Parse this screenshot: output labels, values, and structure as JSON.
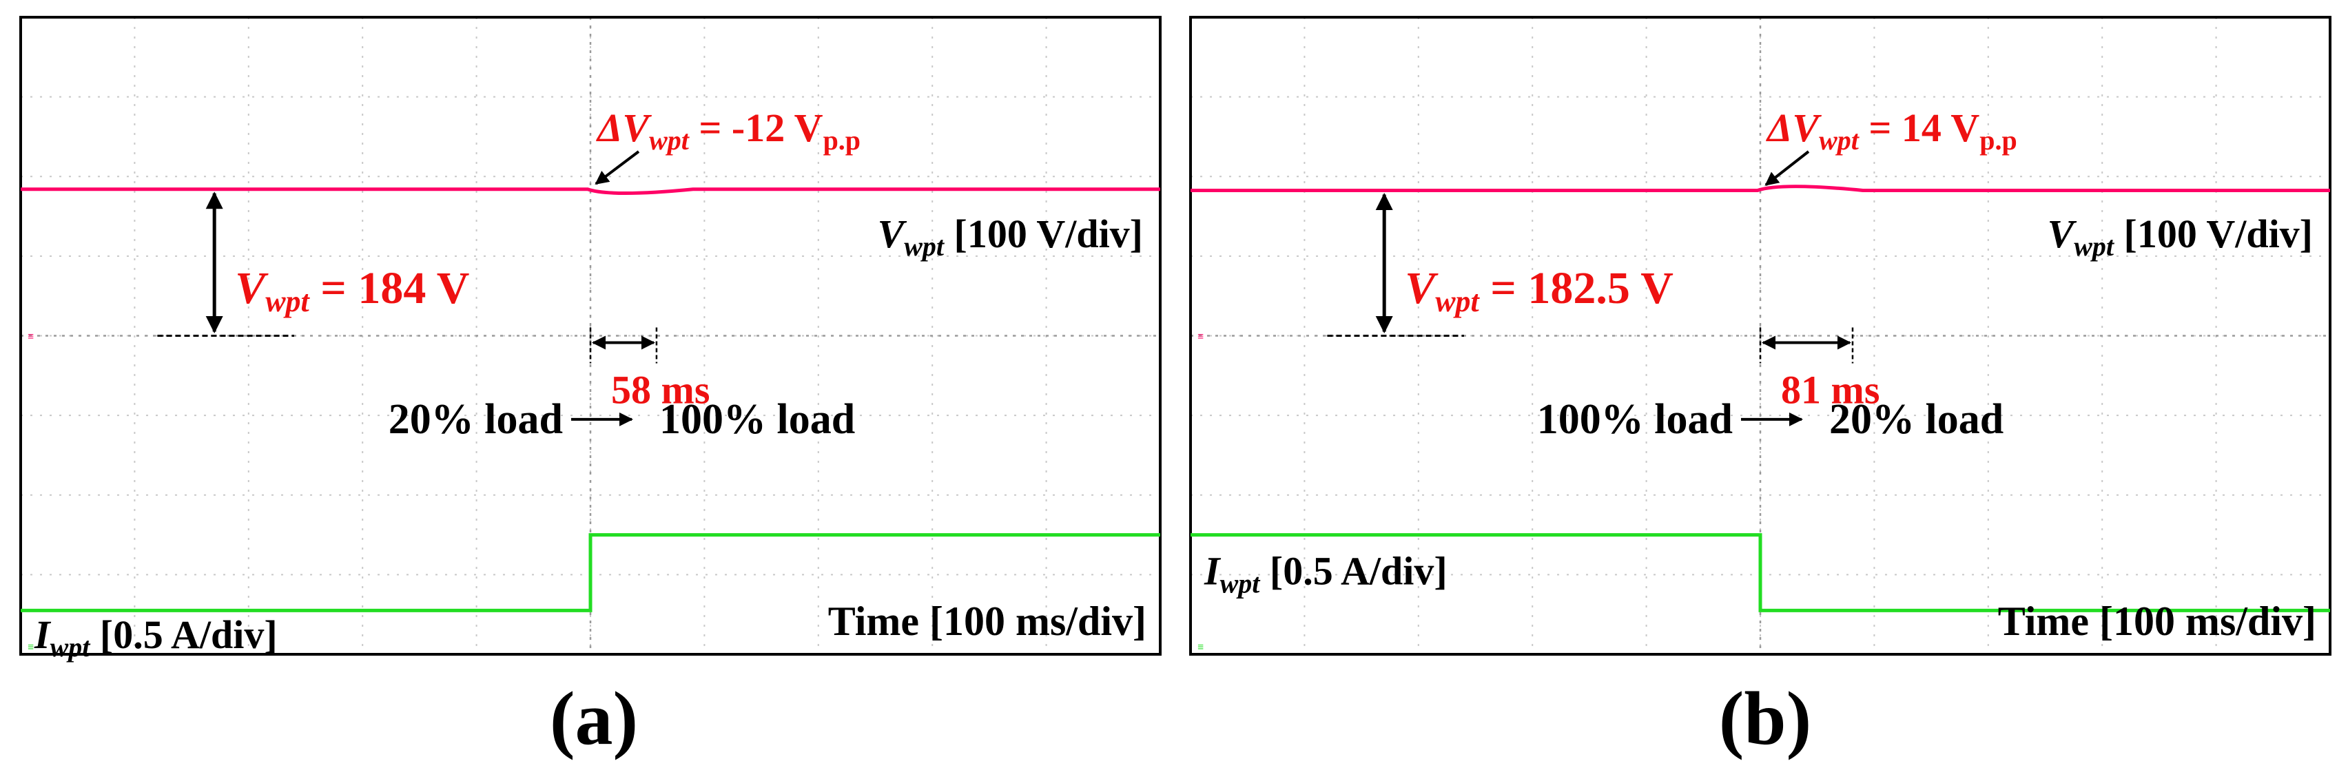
{
  "chart_data": [
    {
      "type": "line",
      "panel_label": "(a)",
      "xlabel": "Time [100 ms/div]",
      "grid": true,
      "step_div": 5,
      "series": [
        {
          "name_main": "V",
          "name_sub": "wpt",
          "name_scale": " [100 V/div]",
          "color": "#ff0066",
          "kind": "voltage",
          "offset_div": 4,
          "before": 184,
          "after": 184,
          "disturbance": "dip",
          "scale_per_div": 100
        },
        {
          "name_main": "I",
          "name_sub": "wpt",
          "name_scale": " [0.5 A/div]",
          "color": "#22dd22",
          "kind": "current",
          "offset_div": 0,
          "before_div": 0.55,
          "after_div": 1.5,
          "scale_per_div": 0.5
        }
      ],
      "annotations": {
        "steady_main": "V",
        "steady_sub": "wpt",
        "steady_text": " = 184 V",
        "delta_prefix": "ΔV",
        "delta_sub": "wpt",
        "delta_text": " = -12 V",
        "delta_unit_sub": "p.p",
        "recovery": "58 ms",
        "recovery_ms": 58,
        "load_from": "20% load",
        "load_to": "100% load"
      }
    },
    {
      "type": "line",
      "panel_label": "(b)",
      "xlabel": "Time [100 ms/div]",
      "grid": true,
      "step_div": 5,
      "series": [
        {
          "name_main": "V",
          "name_sub": "wpt",
          "name_scale": " [100 V/div]",
          "color": "#ff0066",
          "kind": "voltage",
          "offset_div": 4,
          "before": 182.5,
          "after": 182.5,
          "disturbance": "bump",
          "scale_per_div": 100
        },
        {
          "name_main": "I",
          "name_sub": "wpt",
          "name_scale": " [0.5 A/div]",
          "color": "#22dd22",
          "kind": "current",
          "offset_div": 0,
          "before_div": 1.5,
          "after_div": 0.55,
          "scale_per_div": 0.5
        }
      ],
      "annotations": {
        "steady_main": "V",
        "steady_sub": "wpt",
        "steady_text": " = 182.5 V",
        "delta_prefix": "ΔV",
        "delta_sub": "wpt",
        "delta_text": " = 14 V",
        "delta_unit_sub": "p.p",
        "recovery": "81 ms",
        "recovery_ms": 81,
        "load_from": "100% load",
        "load_to": "20% load"
      }
    }
  ],
  "colors": {
    "annotation": "#ee1111",
    "grid": "#c8c8c8",
    "frame": "#000000"
  }
}
